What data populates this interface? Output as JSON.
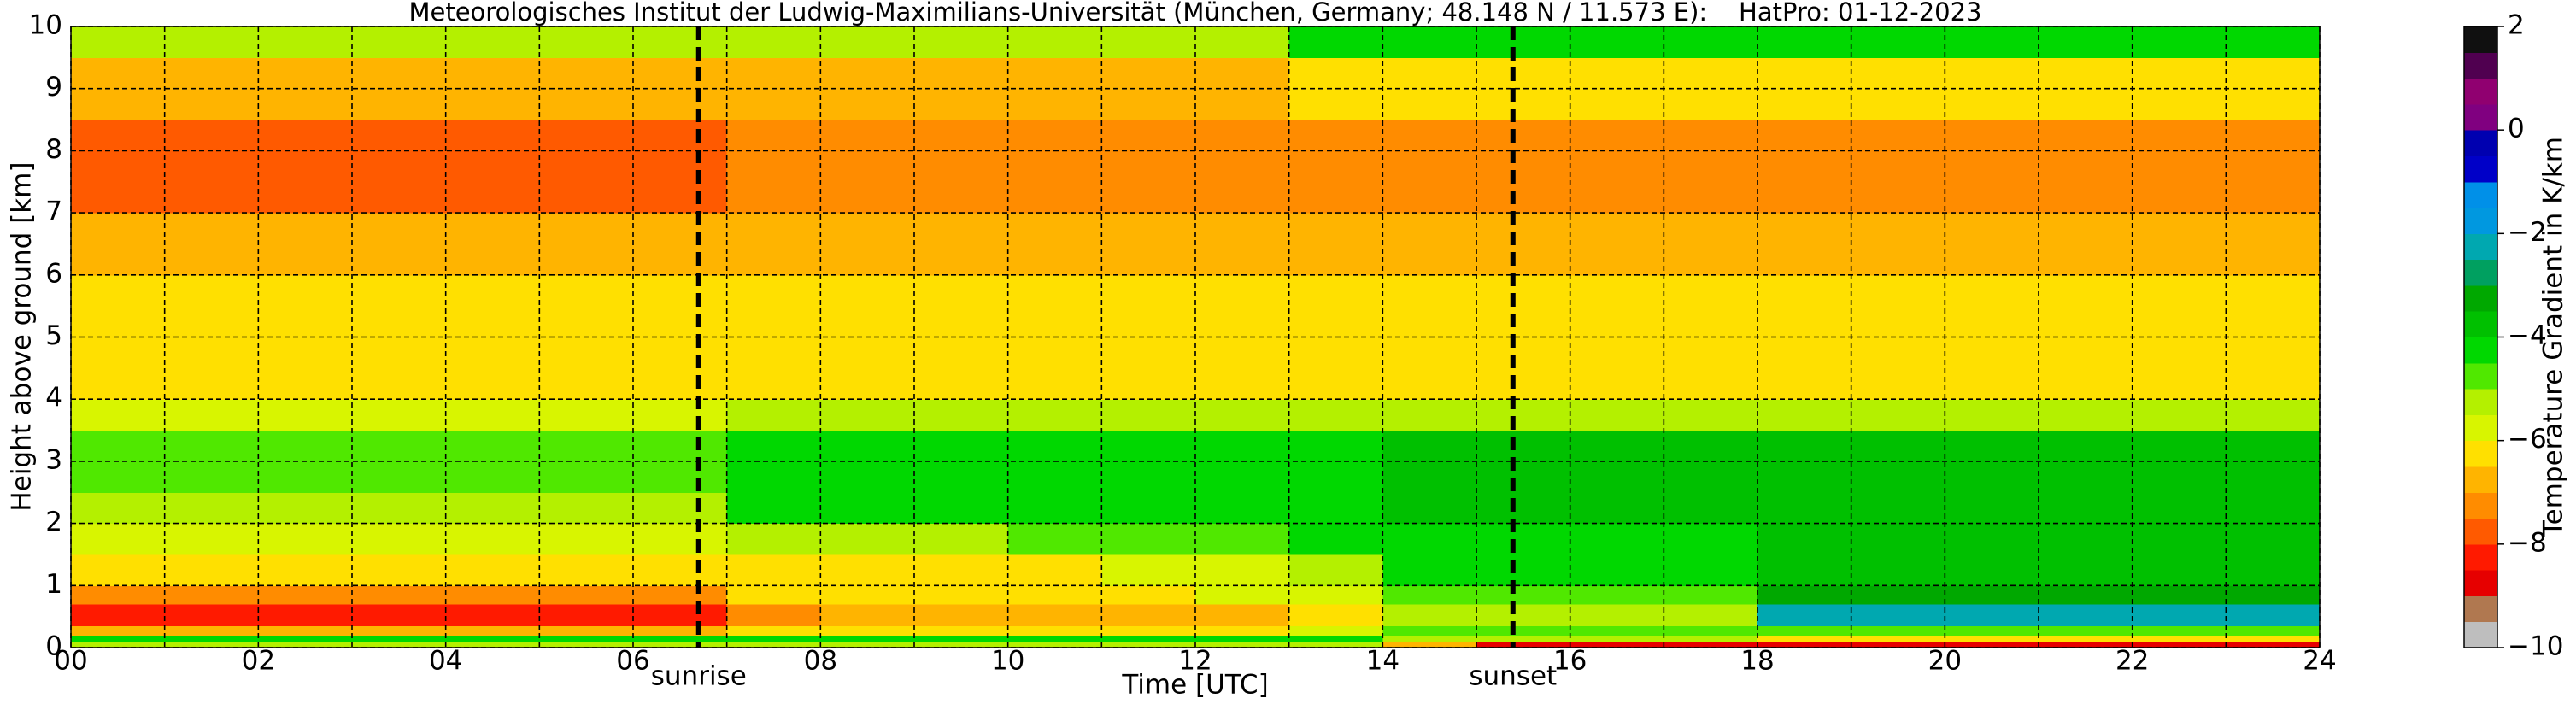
{
  "chart_data": {
    "type": "heatmap",
    "title": "Meteorologisches Institut der Ludwig-Maximilians-Universität (München, Germany; 48.148 N / 11.573 E):    HatPro: 01-12-2023",
    "xlabel": "Time [UTC]",
    "ylabel": "Height above ground [km]",
    "colorbar_label": "Temperature Gradient in K/km",
    "xlim": [
      0,
      24
    ],
    "ylim": [
      0,
      10
    ],
    "xticks": [
      {
        "value": 0,
        "label": "00"
      },
      {
        "value": 2,
        "label": "02"
      },
      {
        "value": 4,
        "label": "04"
      },
      {
        "value": 6,
        "label": "06"
      },
      {
        "value": 8,
        "label": "08"
      },
      10,
      12,
      14,
      16,
      18,
      20,
      22,
      24
    ],
    "x_minor_ticks": [
      1,
      3,
      5,
      7,
      9,
      11,
      13,
      15,
      17,
      19,
      21,
      23
    ],
    "yticks": [
      0,
      1,
      2,
      3,
      4,
      5,
      6,
      7,
      8,
      9,
      10
    ],
    "grid": true,
    "clim": [
      -10,
      2
    ],
    "cticks": [
      {
        "value": -10,
        "label": "−10"
      },
      {
        "value": -8,
        "label": "−8"
      },
      {
        "value": -6,
        "label": "−6"
      },
      {
        "value": -4,
        "label": "−4"
      },
      {
        "value": -2,
        "label": "−2"
      },
      0,
      2
    ],
    "levels": [
      -10,
      -9.5,
      -9,
      -8.5,
      -8,
      -7.5,
      -7,
      -6.5,
      -6,
      -5.5,
      -5,
      -4.5,
      -4,
      -3.5,
      -3,
      -2.5,
      -2,
      -1.5,
      -1,
      -0.5,
      0,
      0.5,
      1,
      1.5,
      2
    ],
    "colors": [
      "#bebebe",
      "#b07850",
      "#e60000",
      "#ff1a00",
      "#ff5a00",
      "#ff8c00",
      "#ffb400",
      "#ffe000",
      "#d8f500",
      "#b4f000",
      "#50e800",
      "#00d800",
      "#00c000",
      "#00a800",
      "#00a060",
      "#00a8b0",
      "#0098e0",
      "#0090e8",
      "#0000c8",
      "#0000b0",
      "#800080",
      "#900070",
      "#500050",
      "#101010"
    ],
    "x_edges": [
      0,
      1,
      2,
      3,
      4,
      5,
      6,
      7,
      8,
      9,
      10,
      11,
      12,
      13,
      14,
      15,
      16,
      17,
      18,
      19,
      20,
      21,
      22,
      23,
      24
    ],
    "y_edges": [
      0,
      0.1,
      0.2,
      0.35,
      0.7,
      1,
      1.5,
      2,
      2.5,
      3.5,
      4,
      5,
      6,
      7,
      8.5,
      9.5,
      10
    ],
    "z": [
      [
        -5.5,
        -5.5,
        -5.5,
        -5.5,
        -5.5,
        -5.5,
        -5.5,
        -5.5,
        -5.5,
        -5.5,
        -5.5,
        -5.5,
        -5.5,
        -5.5,
        -7,
        -8.7,
        -8.7,
        -8.7,
        -8.7,
        -8.7,
        -8.7,
        -8.7,
        -8.7,
        -8.7
      ],
      [
        -4.5,
        -4.5,
        -4.5,
        -4.5,
        -4.5,
        -4.5,
        -4.5,
        -4.5,
        -4.5,
        -4.5,
        -4.5,
        -4.5,
        -4.5,
        -4.5,
        -5.5,
        -5.5,
        -5.5,
        -5.5,
        -6.5,
        -6.5,
        -6.5,
        -6.5,
        -6.5,
        -6.5
      ],
      [
        -7,
        -7,
        -7,
        -7,
        -7,
        -7,
        -7,
        -6.3,
        -6.3,
        -6.3,
        -6.3,
        -6.3,
        -6.3,
        -5.8,
        -5,
        -5,
        -5,
        -5,
        -5,
        -5,
        -5,
        -5,
        -5,
        -5
      ],
      [
        -8.5,
        -8.5,
        -8.5,
        -8.5,
        -8.5,
        -8.5,
        -8.5,
        -7.5,
        -7,
        -7,
        -7,
        -7,
        -7,
        -6.5,
        -5.5,
        -5.5,
        -5.5,
        -5.5,
        -2.3,
        -2.3,
        -2.3,
        -2.3,
        -2.3,
        -2.3
      ],
      [
        -7.3,
        -7.3,
        -7.3,
        -7.3,
        -7.3,
        -7.3,
        -7.3,
        -6.5,
        -6.5,
        -6.5,
        -6.5,
        -6.5,
        -6,
        -6,
        -5,
        -5,
        -5,
        -5,
        -3.5,
        -3.5,
        -3.5,
        -3.5,
        -3.5,
        -3.5
      ],
      [
        -6.5,
        -6.5,
        -6.5,
        -6.5,
        -6.5,
        -6.5,
        -6.5,
        -6.2,
        -6.2,
        -6.2,
        -6.2,
        -5.8,
        -5.8,
        -5.2,
        -4.3,
        -4.3,
        -4.3,
        -4.3,
        -3.7,
        -3.7,
        -3.7,
        -3.7,
        -3.7,
        -3.7
      ],
      [
        -6,
        -6,
        -6,
        -6,
        -6,
        -6,
        -6,
        -5.5,
        -5.5,
        -5.5,
        -5,
        -5,
        -5,
        -4.3,
        -4.3,
        -4.3,
        -4.3,
        -4.3,
        -3.7,
        -3.7,
        -3.7,
        -3.7,
        -3.7,
        -3.7
      ],
      [
        -5.2,
        -5.2,
        -5.2,
        -5.2,
        -5.2,
        -5.2,
        -5.2,
        -4.4,
        -4.4,
        -4.4,
        -4.4,
        -4.4,
        -4.4,
        -4.4,
        -4,
        -4,
        -4,
        -4,
        -3.8,
        -3.8,
        -3.8,
        -3.8,
        -3.8,
        -3.8
      ],
      [
        -4.6,
        -4.6,
        -4.6,
        -4.6,
        -4.6,
        -4.6,
        -4.6,
        -4.2,
        -4.2,
        -4.2,
        -4.2,
        -4.2,
        -4.2,
        -4.2,
        -4,
        -4,
        -4,
        -4,
        -4,
        -4,
        -4,
        -4,
        -4,
        -4
      ],
      [
        -5.8,
        -5.8,
        -5.8,
        -5.8,
        -5.8,
        -5.8,
        -5.8,
        -5.5,
        -5.5,
        -5.5,
        -5.5,
        -5.5,
        -5.5,
        -5.5,
        -5.5,
        -5.5,
        -5.5,
        -5.5,
        -5.5,
        -5.5,
        -5.5,
        -5.5,
        -5.5,
        -5.5
      ],
      [
        -6.2,
        -6.2,
        -6.2,
        -6.2,
        -6.2,
        -6.2,
        -6.2,
        -6.2,
        -6.2,
        -6.2,
        -6.2,
        -6.2,
        -6.2,
        -6.2,
        -6.2,
        -6.2,
        -6.2,
        -6.2,
        -6.2,
        -6.2,
        -6.2,
        -6.2,
        -6.2,
        -6.2
      ],
      [
        -6.3,
        -6.3,
        -6.3,
        -6.3,
        -6.3,
        -6.3,
        -6.3,
        -6.3,
        -6.3,
        -6.3,
        -6.3,
        -6.3,
        -6.3,
        -6.3,
        -6.3,
        -6.3,
        -6.3,
        -6.3,
        -6.3,
        -6.3,
        -6.3,
        -6.3,
        -6.3,
        -6.3
      ],
      [
        -6.8,
        -6.8,
        -6.8,
        -6.8,
        -6.8,
        -6.8,
        -6.8,
        -6.8,
        -6.8,
        -6.8,
        -6.8,
        -6.8,
        -6.8,
        -6.8,
        -6.8,
        -6.8,
        -6.8,
        -6.8,
        -6.8,
        -6.8,
        -6.8,
        -6.8,
        -6.8,
        -6.8
      ],
      [
        -7.6,
        -7.6,
        -7.6,
        -7.6,
        -7.6,
        -7.6,
        -7.6,
        -7.3,
        -7.3,
        -7.3,
        -7.3,
        -7.3,
        -7.3,
        -7.3,
        -7.3,
        -7.3,
        -7.3,
        -7.3,
        -7.3,
        -7.3,
        -7.3,
        -7.3,
        -7.3,
        -7.3
      ],
      [
        -6.8,
        -6.8,
        -6.8,
        -6.8,
        -6.8,
        -6.8,
        -6.8,
        -6.8,
        -6.8,
        -6.8,
        -6.8,
        -6.8,
        -6.8,
        -6.5,
        -6.5,
        -6.5,
        -6.5,
        -6.5,
        -6.5,
        -6.5,
        -6.5,
        -6.5,
        -6.5,
        -6.5
      ],
      [
        -5.5,
        -5.5,
        -5.5,
        -5.5,
        -5.5,
        -5.5,
        -5.5,
        -5.5,
        -5.5,
        -5.5,
        -5.5,
        -5.5,
        -5.5,
        -4.5,
        -4.5,
        -4.5,
        -4.5,
        -4.5,
        -4.5,
        -4.5,
        -4.5,
        -4.5,
        -4.5,
        -4.5
      ]
    ],
    "annotations": [
      {
        "text": "sunrise",
        "x": 6.7
      },
      {
        "text": "sunset",
        "x": 15.39
      }
    ]
  }
}
